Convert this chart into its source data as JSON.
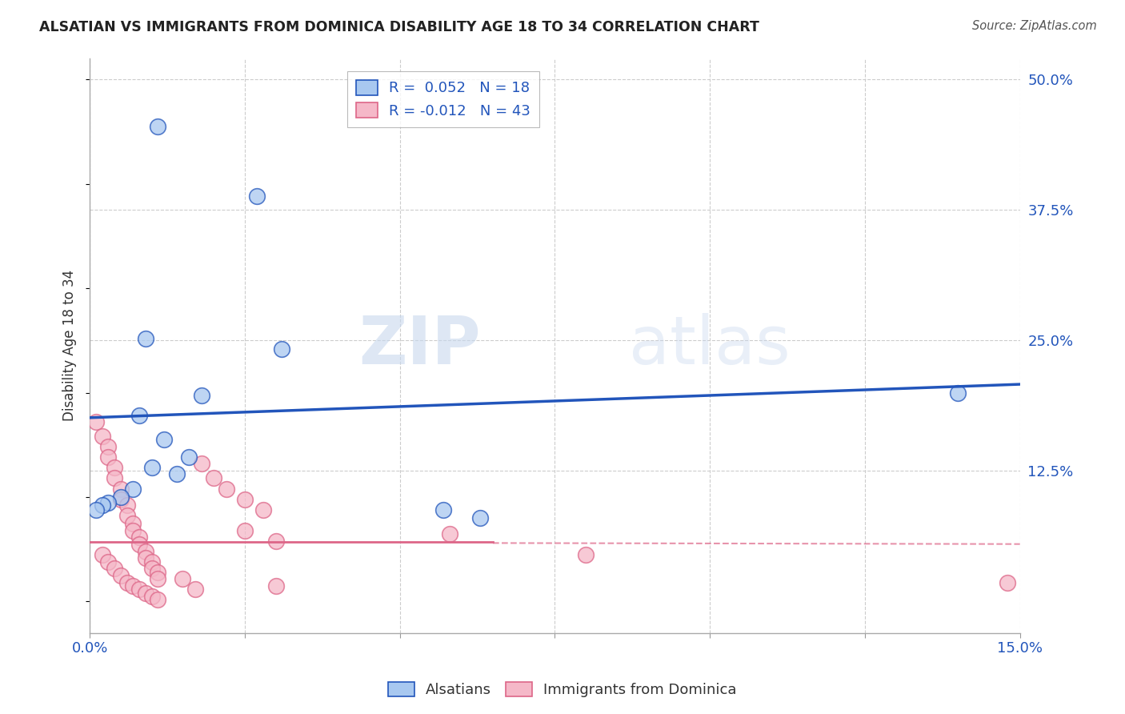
{
  "title": "ALSATIAN VS IMMIGRANTS FROM DOMINICA DISABILITY AGE 18 TO 34 CORRELATION CHART",
  "source": "Source: ZipAtlas.com",
  "ylabel_label": "Disability Age 18 to 34",
  "xlim": [
    0.0,
    0.15
  ],
  "ylim": [
    -0.03,
    0.52
  ],
  "xticks": [
    0.0,
    0.025,
    0.05,
    0.075,
    0.1,
    0.125,
    0.15
  ],
  "xtick_labels": [
    "0.0%",
    "",
    "",
    "",
    "",
    "",
    "15.0%"
  ],
  "ytick_labels_right": [
    "50.0%",
    "37.5%",
    "25.0%",
    "12.5%"
  ],
  "ytick_vals_right": [
    0.5,
    0.375,
    0.25,
    0.125
  ],
  "blue_R": "0.052",
  "blue_N": "18",
  "pink_R": "-0.012",
  "pink_N": "43",
  "blue_color": "#A8C8F0",
  "pink_color": "#F5B8C8",
  "blue_line_color": "#2255BB",
  "pink_line_color": "#DD6688",
  "grid_color": "#CCCCCC",
  "background_color": "#FFFFFF",
  "watermark_zip": "ZIP",
  "watermark_atlas": "atlas",
  "blue_line": [
    0.0,
    0.176,
    0.15,
    0.208
  ],
  "pink_line_solid": [
    0.0,
    0.057,
    0.065,
    0.057
  ],
  "pink_line_dashed": [
    0.065,
    0.056,
    0.15,
    0.055
  ],
  "alsatian_points": [
    [
      0.011,
      0.455
    ],
    [
      0.027,
      0.388
    ],
    [
      0.009,
      0.252
    ],
    [
      0.031,
      0.242
    ],
    [
      0.018,
      0.197
    ],
    [
      0.008,
      0.178
    ],
    [
      0.012,
      0.155
    ],
    [
      0.016,
      0.138
    ],
    [
      0.01,
      0.128
    ],
    [
      0.014,
      0.122
    ],
    [
      0.007,
      0.108
    ],
    [
      0.005,
      0.1
    ],
    [
      0.003,
      0.095
    ],
    [
      0.002,
      0.092
    ],
    [
      0.001,
      0.088
    ],
    [
      0.057,
      0.088
    ],
    [
      0.063,
      0.08
    ],
    [
      0.14,
      0.2
    ]
  ],
  "dominica_points": [
    [
      0.001,
      0.172
    ],
    [
      0.002,
      0.158
    ],
    [
      0.003,
      0.148
    ],
    [
      0.003,
      0.138
    ],
    [
      0.004,
      0.128
    ],
    [
      0.004,
      0.118
    ],
    [
      0.005,
      0.108
    ],
    [
      0.005,
      0.098
    ],
    [
      0.006,
      0.092
    ],
    [
      0.006,
      0.082
    ],
    [
      0.007,
      0.075
    ],
    [
      0.007,
      0.068
    ],
    [
      0.008,
      0.062
    ],
    [
      0.008,
      0.055
    ],
    [
      0.009,
      0.048
    ],
    [
      0.009,
      0.042
    ],
    [
      0.01,
      0.038
    ],
    [
      0.01,
      0.032
    ],
    [
      0.011,
      0.028
    ],
    [
      0.011,
      0.022
    ],
    [
      0.002,
      0.045
    ],
    [
      0.003,
      0.038
    ],
    [
      0.004,
      0.032
    ],
    [
      0.005,
      0.025
    ],
    [
      0.006,
      0.018
    ],
    [
      0.007,
      0.015
    ],
    [
      0.008,
      0.012
    ],
    [
      0.009,
      0.008
    ],
    [
      0.01,
      0.005
    ],
    [
      0.011,
      0.002
    ],
    [
      0.018,
      0.132
    ],
    [
      0.02,
      0.118
    ],
    [
      0.022,
      0.108
    ],
    [
      0.025,
      0.098
    ],
    [
      0.028,
      0.088
    ],
    [
      0.025,
      0.068
    ],
    [
      0.03,
      0.058
    ],
    [
      0.015,
      0.022
    ],
    [
      0.017,
      0.012
    ],
    [
      0.03,
      0.015
    ],
    [
      0.058,
      0.065
    ],
    [
      0.08,
      0.045
    ],
    [
      0.148,
      0.018
    ]
  ]
}
